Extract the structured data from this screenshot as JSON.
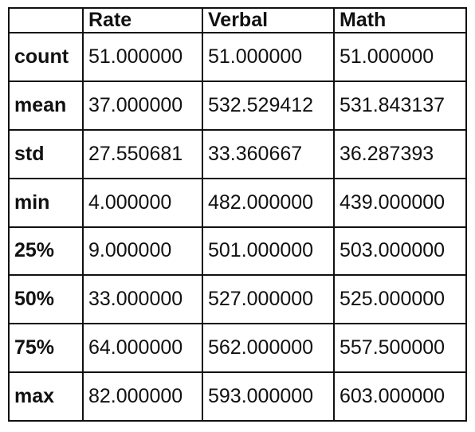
{
  "chart_data": {
    "type": "table",
    "columns": [
      "",
      "Rate",
      "Verbal",
      "Math"
    ],
    "rows": [
      {
        "label": "count",
        "values": [
          "51.000000",
          "51.000000",
          "51.000000"
        ]
      },
      {
        "label": "mean",
        "values": [
          "37.000000",
          "532.529412",
          "531.843137"
        ]
      },
      {
        "label": "std",
        "values": [
          "27.550681",
          "33.360667",
          "36.287393"
        ]
      },
      {
        "label": "min",
        "values": [
          "4.000000",
          "482.000000",
          "439.000000"
        ]
      },
      {
        "label": "25%",
        "values": [
          "9.000000",
          "501.000000",
          "503.000000"
        ]
      },
      {
        "label": "50%",
        "values": [
          "33.000000",
          "527.000000",
          "525.000000"
        ]
      },
      {
        "label": "75%",
        "values": [
          "64.000000",
          "562.000000",
          "557.500000"
        ]
      },
      {
        "label": "max",
        "values": [
          "82.000000",
          "593.000000",
          "603.000000"
        ]
      }
    ]
  }
}
